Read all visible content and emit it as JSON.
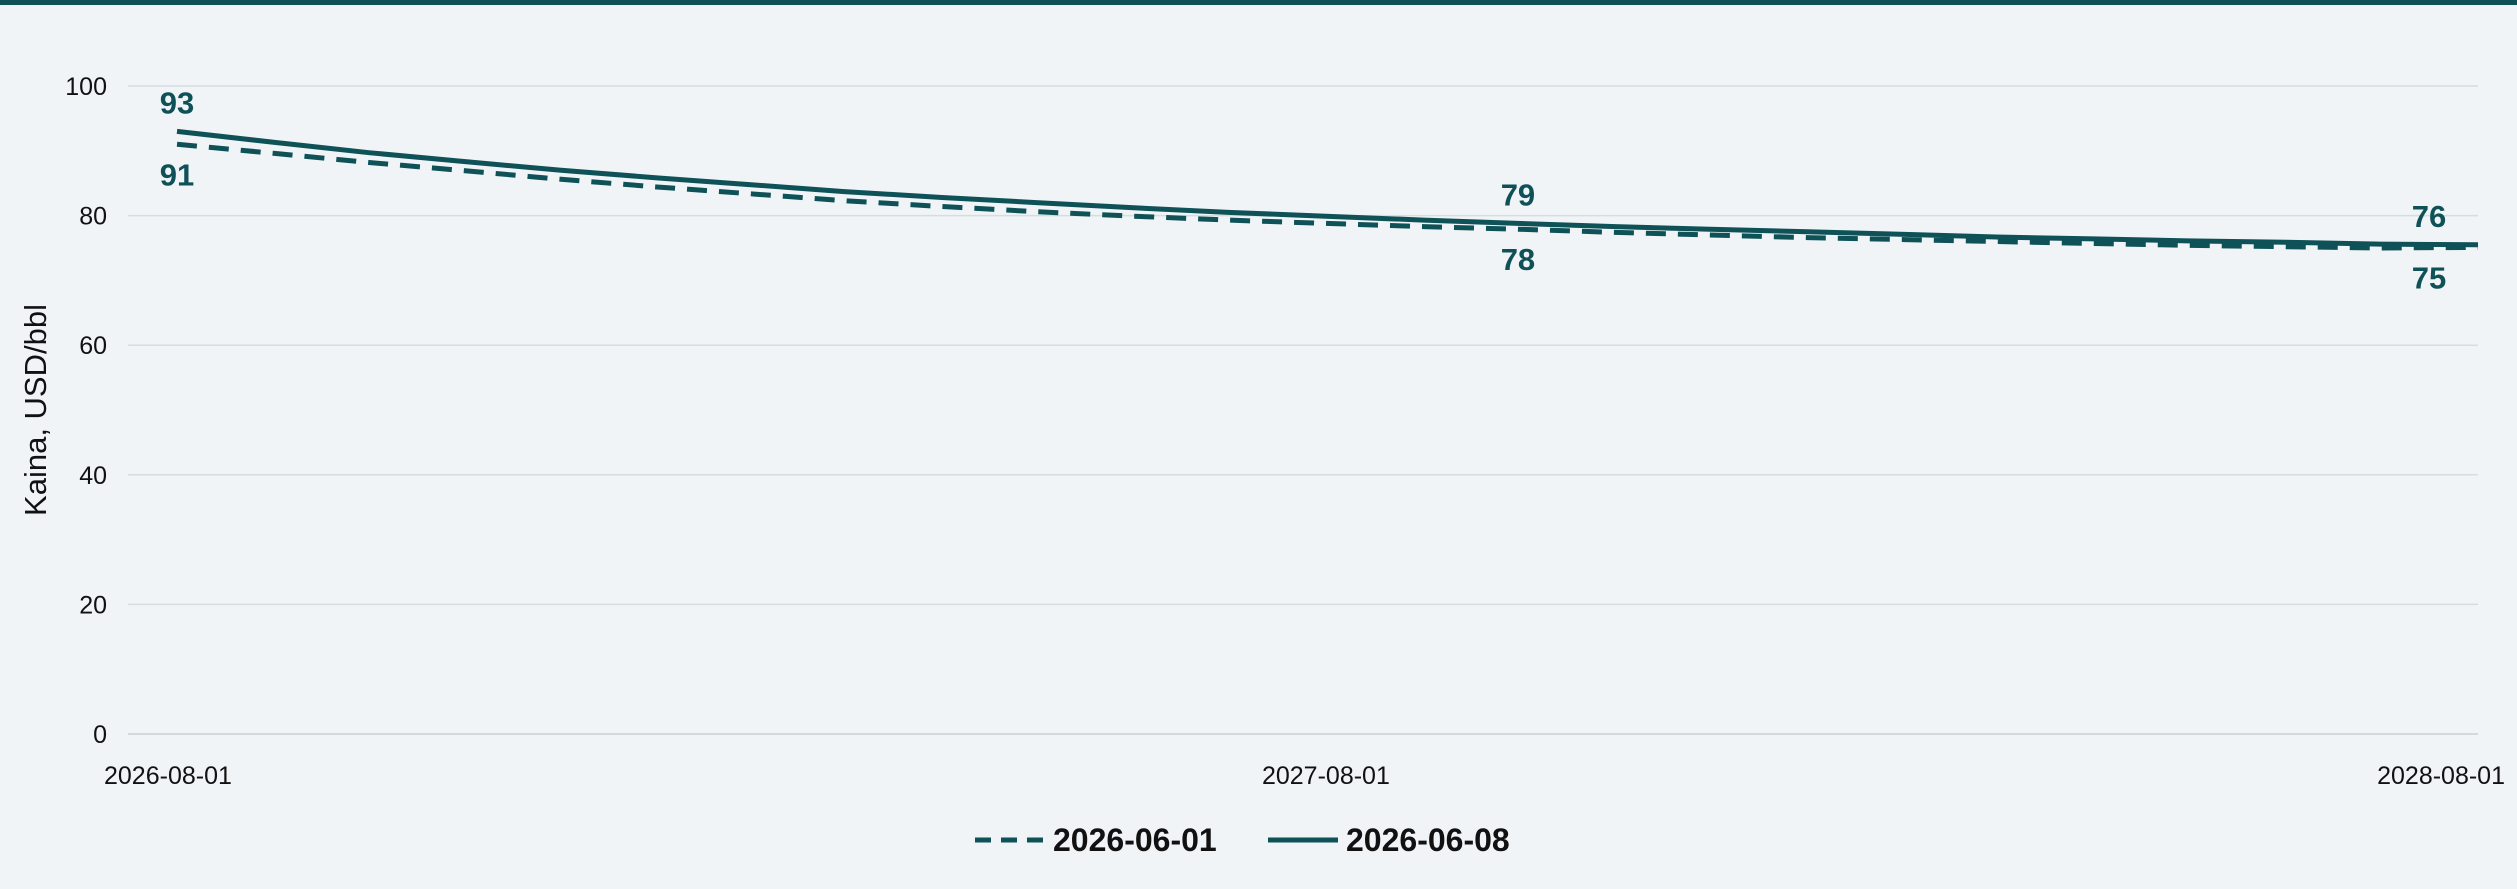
{
  "chart_data": {
    "type": "line",
    "title": "",
    "xlabel": "",
    "ylabel": "Kaina, USD/bbl",
    "ylim": [
      0,
      100
    ],
    "yticks": [
      0,
      20,
      40,
      60,
      80,
      100
    ],
    "xlim": [
      "2026-08-01",
      "2028-08-01"
    ],
    "xticks": [
      "2026-08-01",
      "2027-08-01",
      "2028-08-01"
    ],
    "grid": true,
    "legend_position": "bottom",
    "colors": {
      "series": "#0e5157",
      "grid": "#d6dcdf",
      "background": "#f0f4f7"
    },
    "series": [
      {
        "name": "2026-06-01",
        "style": "dashed",
        "x": [
          "2026-08-01",
          "2026-09-01",
          "2026-10-01",
          "2026-11-01",
          "2026-12-01",
          "2027-01-01",
          "2027-02-01",
          "2027-03-01",
          "2027-04-01",
          "2027-05-01",
          "2027-06-01",
          "2027-07-01",
          "2027-08-01",
          "2027-09-01",
          "2027-10-01",
          "2027-11-01",
          "2027-12-01",
          "2028-01-01",
          "2028-02-01",
          "2028-03-01",
          "2028-04-01",
          "2028-05-01",
          "2028-06-01",
          "2028-07-01",
          "2028-08-01"
        ],
        "values": [
          91.0,
          89.6,
          88.2,
          86.9,
          85.6,
          84.4,
          83.3,
          82.3,
          81.4,
          80.6,
          79.9,
          79.3,
          78.8,
          78.3,
          77.9,
          77.4,
          77.0,
          76.6,
          76.3,
          76.0,
          75.7,
          75.4,
          75.2,
          75.0,
          75.1
        ],
        "labels": [
          {
            "x": "2026-08-01",
            "text": "91"
          },
          {
            "x": "2027-10-01",
            "text": "78"
          },
          {
            "x": "2028-08-01",
            "text": "75"
          }
        ]
      },
      {
        "name": "2026-06-08",
        "style": "solid",
        "x": [
          "2026-08-01",
          "2026-09-01",
          "2026-10-01",
          "2026-11-01",
          "2026-12-01",
          "2027-01-01",
          "2027-02-01",
          "2027-03-01",
          "2027-04-01",
          "2027-05-01",
          "2027-06-01",
          "2027-07-01",
          "2027-08-01",
          "2027-09-01",
          "2027-10-01",
          "2027-11-01",
          "2027-12-01",
          "2028-01-01",
          "2028-02-01",
          "2028-03-01",
          "2028-04-01",
          "2028-05-01",
          "2028-06-01",
          "2028-07-01",
          "2028-08-01"
        ],
        "values": [
          93.0,
          91.3,
          89.7,
          88.3,
          87.0,
          85.8,
          84.7,
          83.7,
          82.8,
          82.0,
          81.2,
          80.5,
          79.9,
          79.3,
          78.8,
          78.3,
          77.9,
          77.5,
          77.1,
          76.7,
          76.4,
          76.1,
          75.9,
          75.6,
          75.5
        ],
        "labels": [
          {
            "x": "2026-08-01",
            "text": "93"
          },
          {
            "x": "2027-10-01",
            "text": "79"
          },
          {
            "x": "2028-08-01",
            "text": "76"
          }
        ]
      }
    ]
  }
}
